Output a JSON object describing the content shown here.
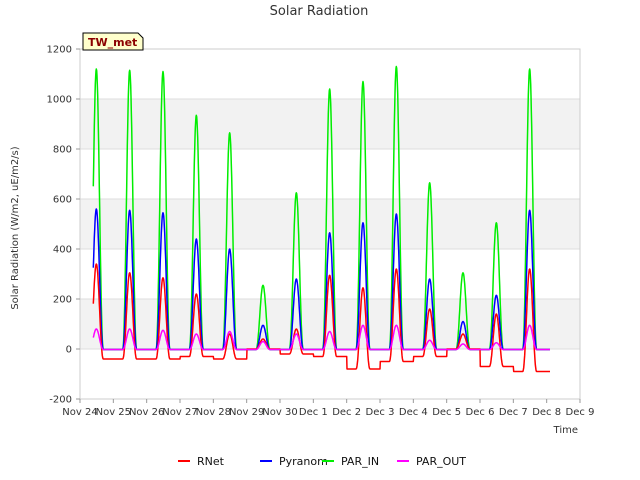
{
  "chart_data": {
    "type": "line",
    "title": "Solar Radiation",
    "xlabel": "Time",
    "ylabel": "Solar Radiation (W/m2, uE/m2/s)",
    "site_tag": "TW_met",
    "ylim": [
      -200,
      1200
    ],
    "yticks": [
      -200,
      0,
      200,
      400,
      600,
      800,
      1000,
      1200
    ],
    "xlim": [
      0,
      15
    ],
    "xticks": [
      0,
      1,
      2,
      3,
      4,
      5,
      6,
      7,
      8,
      9,
      10,
      11,
      12,
      13,
      14,
      15
    ],
    "xtick_labels": [
      "Nov 24",
      "Nov 25",
      "Nov 26",
      "Nov 27",
      "Nov 28",
      "Nov 29",
      "Nov 30",
      "Dec 1",
      "Dec 2",
      "Dec 3",
      "Dec 4",
      "Dec 5",
      "Dec 6",
      "Dec 7",
      "Dec 8",
      "Dec 9"
    ],
    "days": [
      {
        "day": 0,
        "par_in": 1120,
        "pyranom": 560,
        "rnet": 340,
        "par_out": 80,
        "rnet_night": -40
      },
      {
        "day": 1,
        "par_in": 1115,
        "pyranom": 555,
        "rnet": 305,
        "par_out": 80,
        "rnet_night": -40
      },
      {
        "day": 2,
        "par_in": 1110,
        "pyranom": 545,
        "rnet": 285,
        "par_out": 75,
        "rnet_night": -40
      },
      {
        "day": 3,
        "par_in": 935,
        "pyranom": 440,
        "rnet": 220,
        "par_out": 60,
        "rnet_night": -30
      },
      {
        "day": 4,
        "par_in": 865,
        "pyranom": 400,
        "rnet": 60,
        "par_out": 70,
        "rnet_night": -40
      },
      {
        "day": 5,
        "par_in": 255,
        "pyranom": 95,
        "rnet": 40,
        "par_out": 30,
        "rnet_night": 0
      },
      {
        "day": 6,
        "par_in": 625,
        "pyranom": 280,
        "rnet": 80,
        "par_out": 60,
        "rnet_night": -20
      },
      {
        "day": 7,
        "par_in": 1040,
        "pyranom": 465,
        "rnet": 295,
        "par_out": 70,
        "rnet_night": -30
      },
      {
        "day": 8,
        "par_in": 1070,
        "pyranom": 505,
        "rnet": 245,
        "par_out": 95,
        "rnet_night": -80
      },
      {
        "day": 9,
        "par_in": 1130,
        "pyranom": 540,
        "rnet": 320,
        "par_out": 95,
        "rnet_night": -50
      },
      {
        "day": 10,
        "par_in": 665,
        "pyranom": 280,
        "rnet": 160,
        "par_out": 35,
        "rnet_night": -30
      },
      {
        "day": 11,
        "par_in": 305,
        "pyranom": 110,
        "rnet": 60,
        "par_out": 20,
        "rnet_night": 0
      },
      {
        "day": 12,
        "par_in": 505,
        "pyranom": 215,
        "rnet": 140,
        "par_out": 25,
        "rnet_night": -70
      },
      {
        "day": 13,
        "par_in": 1120,
        "pyranom": 555,
        "rnet": 320,
        "par_out": 95,
        "rnet_night": -90
      }
    ],
    "series": [
      {
        "name": "RNet",
        "color": "#ff0000"
      },
      {
        "name": "Pyranom",
        "color": "#0000ff"
      },
      {
        "name": "PAR_IN",
        "color": "#00ee00"
      },
      {
        "name": "PAR_OUT",
        "color": "#ff00ff"
      }
    ]
  }
}
